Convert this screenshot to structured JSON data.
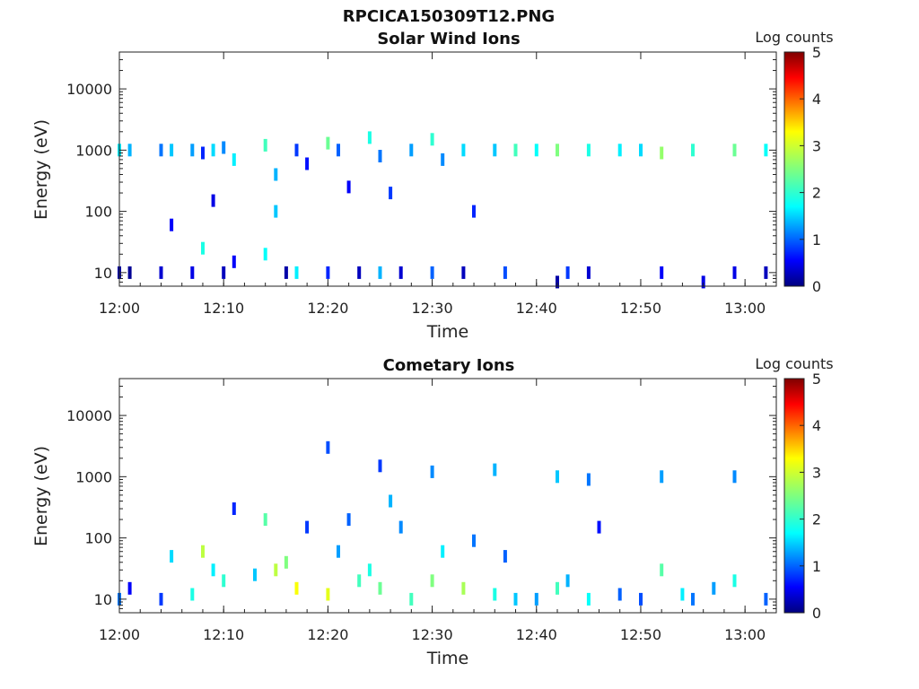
{
  "figure": {
    "title": "RPCICA150309T12.PNG"
  },
  "chart_data": [
    {
      "type": "heatmap",
      "title": "Solar Wind Ions",
      "xlabel": "Time",
      "ylabel": "Energy (eV)",
      "x_range": [
        "12:00",
        "13:03"
      ],
      "xticks": [
        "12:00",
        "12:10",
        "12:20",
        "12:30",
        "12:40",
        "12:50",
        "13:00"
      ],
      "y_scale": "log",
      "y_range": [
        6,
        40000
      ],
      "yticks": [
        "10",
        "100",
        "1000",
        "10000"
      ],
      "colorbar": {
        "title": "Log counts",
        "range": [
          0,
          5
        ],
        "ticks": [
          "0",
          "1",
          "2",
          "3",
          "4",
          "5"
        ],
        "colormap": "jet"
      },
      "cells": [
        {
          "t": "12:00",
          "e": 10,
          "v": 0.2
        },
        {
          "t": "12:00",
          "e": 1000,
          "v": 1.8
        },
        {
          "t": "12:01",
          "e": 1000,
          "v": 1.5
        },
        {
          "t": "12:01",
          "e": 10,
          "v": 0.1
        },
        {
          "t": "12:04",
          "e": 1000,
          "v": 1.2
        },
        {
          "t": "12:04",
          "e": 10,
          "v": 0.4
        },
        {
          "t": "12:05",
          "e": 1000,
          "v": 1.6
        },
        {
          "t": "12:05",
          "e": 60,
          "v": 0.6
        },
        {
          "t": "12:07",
          "e": 1000,
          "v": 1.4
        },
        {
          "t": "12:07",
          "e": 10,
          "v": 0.5
        },
        {
          "t": "12:08",
          "e": 25,
          "v": 2.0
        },
        {
          "t": "12:08",
          "e": 900,
          "v": 0.8
        },
        {
          "t": "12:09",
          "e": 1000,
          "v": 1.7
        },
        {
          "t": "12:09",
          "e": 150,
          "v": 0.5
        },
        {
          "t": "12:10",
          "e": 10,
          "v": 0.3
        },
        {
          "t": "12:10",
          "e": 1100,
          "v": 1.3
        },
        {
          "t": "12:11",
          "e": 700,
          "v": 1.8
        },
        {
          "t": "12:11",
          "e": 15,
          "v": 0.6
        },
        {
          "t": "12:14",
          "e": 20,
          "v": 1.9
        },
        {
          "t": "12:14",
          "e": 1200,
          "v": 2.2
        },
        {
          "t": "12:15",
          "e": 400,
          "v": 1.5
        },
        {
          "t": "12:15",
          "e": 100,
          "v": 1.6
        },
        {
          "t": "12:16",
          "e": 10,
          "v": 0.2
        },
        {
          "t": "12:17",
          "e": 10,
          "v": 1.8
        },
        {
          "t": "12:17",
          "e": 1000,
          "v": 0.9
        },
        {
          "t": "12:18",
          "e": 600,
          "v": 0.7
        },
        {
          "t": "12:20",
          "e": 1300,
          "v": 2.4
        },
        {
          "t": "12:20",
          "e": 10,
          "v": 0.8
        },
        {
          "t": "12:21",
          "e": 1000,
          "v": 1.1
        },
        {
          "t": "12:22",
          "e": 250,
          "v": 0.6
        },
        {
          "t": "12:23",
          "e": 10,
          "v": 0.3
        },
        {
          "t": "12:24",
          "e": 1600,
          "v": 2.0
        },
        {
          "t": "12:25",
          "e": 800,
          "v": 1.2
        },
        {
          "t": "12:25",
          "e": 10,
          "v": 1.5
        },
        {
          "t": "12:26",
          "e": 200,
          "v": 0.9
        },
        {
          "t": "12:27",
          "e": 10,
          "v": 0.4
        },
        {
          "t": "12:28",
          "e": 1000,
          "v": 1.4
        },
        {
          "t": "12:30",
          "e": 1500,
          "v": 2.1
        },
        {
          "t": "12:30",
          "e": 10,
          "v": 1.1
        },
        {
          "t": "12:31",
          "e": 700,
          "v": 1.3
        },
        {
          "t": "12:33",
          "e": 10,
          "v": 0.3
        },
        {
          "t": "12:33",
          "e": 1000,
          "v": 1.7
        },
        {
          "t": "12:34",
          "e": 100,
          "v": 0.8
        },
        {
          "t": "12:36",
          "e": 1000,
          "v": 1.6
        },
        {
          "t": "12:37",
          "e": 10,
          "v": 1.0
        },
        {
          "t": "12:38",
          "e": 1000,
          "v": 2.2
        },
        {
          "t": "12:40",
          "e": 1000,
          "v": 1.9
        },
        {
          "t": "12:42",
          "e": 1000,
          "v": 2.5
        },
        {
          "t": "12:42",
          "e": 7,
          "v": 0.2
        },
        {
          "t": "12:43",
          "e": 10,
          "v": 0.9
        },
        {
          "t": "12:45",
          "e": 1000,
          "v": 2.0
        },
        {
          "t": "12:45",
          "e": 10,
          "v": 0.4
        },
        {
          "t": "12:48",
          "e": 1000,
          "v": 1.8
        },
        {
          "t": "12:50",
          "e": 1000,
          "v": 1.7
        },
        {
          "t": "12:52",
          "e": 900,
          "v": 2.6
        },
        {
          "t": "12:52",
          "e": 10,
          "v": 0.6
        },
        {
          "t": "12:55",
          "e": 1000,
          "v": 2.1
        },
        {
          "t": "12:56",
          "e": 7,
          "v": 0.5
        },
        {
          "t": "12:59",
          "e": 1000,
          "v": 2.4
        },
        {
          "t": "12:59",
          "e": 10,
          "v": 0.5
        },
        {
          "t": "13:02",
          "e": 1000,
          "v": 1.9
        },
        {
          "t": "13:02",
          "e": 10,
          "v": 0.3
        }
      ]
    },
    {
      "type": "heatmap",
      "title": "Cometary Ions",
      "xlabel": "Time",
      "ylabel": "Energy (eV)",
      "x_range": [
        "12:00",
        "13:03"
      ],
      "xticks": [
        "12:00",
        "12:10",
        "12:20",
        "12:30",
        "12:40",
        "12:50",
        "13:00"
      ],
      "y_scale": "log",
      "y_range": [
        6,
        40000
      ],
      "yticks": [
        "10",
        "100",
        "1000",
        "10000"
      ],
      "colorbar": {
        "title": "Log counts",
        "range": [
          0,
          5
        ],
        "ticks": [
          "0",
          "1",
          "2",
          "3",
          "4",
          "5"
        ],
        "colormap": "jet"
      },
      "cells": [
        {
          "t": "12:00",
          "e": 10,
          "v": 1.2
        },
        {
          "t": "12:01",
          "e": 15,
          "v": 0.6
        },
        {
          "t": "12:04",
          "e": 10,
          "v": 0.9
        },
        {
          "t": "12:05",
          "e": 50,
          "v": 1.7
        },
        {
          "t": "12:07",
          "e": 12,
          "v": 2.0
        },
        {
          "t": "12:08",
          "e": 60,
          "v": 2.8
        },
        {
          "t": "12:09",
          "e": 30,
          "v": 1.8
        },
        {
          "t": "12:10",
          "e": 20,
          "v": 2.1
        },
        {
          "t": "12:11",
          "e": 300,
          "v": 0.8
        },
        {
          "t": "12:13",
          "e": 25,
          "v": 1.6
        },
        {
          "t": "12:14",
          "e": 200,
          "v": 2.3
        },
        {
          "t": "12:15",
          "e": 30,
          "v": 2.8
        },
        {
          "t": "12:16",
          "e": 40,
          "v": 2.5
        },
        {
          "t": "12:17",
          "e": 15,
          "v": 3.1
        },
        {
          "t": "12:18",
          "e": 150,
          "v": 0.9
        },
        {
          "t": "12:20",
          "e": 12,
          "v": 3.0
        },
        {
          "t": "12:21",
          "e": 60,
          "v": 1.4
        },
        {
          "t": "12:22",
          "e": 200,
          "v": 1.1
        },
        {
          "t": "12:23",
          "e": 20,
          "v": 2.2
        },
        {
          "t": "12:24",
          "e": 30,
          "v": 2.0
        },
        {
          "t": "12:25",
          "e": 15,
          "v": 2.4
        },
        {
          "t": "12:26",
          "e": 400,
          "v": 1.5
        },
        {
          "t": "12:27",
          "e": 150,
          "v": 1.3
        },
        {
          "t": "12:28",
          "e": 10,
          "v": 2.2
        },
        {
          "t": "12:30",
          "e": 20,
          "v": 2.5
        },
        {
          "t": "12:31",
          "e": 60,
          "v": 1.8
        },
        {
          "t": "12:33",
          "e": 15,
          "v": 2.7
        },
        {
          "t": "12:34",
          "e": 90,
          "v": 1.2
        },
        {
          "t": "12:36",
          "e": 12,
          "v": 2.0
        },
        {
          "t": "12:37",
          "e": 50,
          "v": 1.1
        },
        {
          "t": "12:38",
          "e": 10,
          "v": 1.6
        },
        {
          "t": "12:40",
          "e": 10,
          "v": 1.4
        },
        {
          "t": "12:42",
          "e": 15,
          "v": 2.2
        },
        {
          "t": "12:43",
          "e": 20,
          "v": 1.5
        },
        {
          "t": "12:45",
          "e": 10,
          "v": 1.9
        },
        {
          "t": "12:46",
          "e": 150,
          "v": 0.7
        },
        {
          "t": "12:48",
          "e": 12,
          "v": 1.1
        },
        {
          "t": "12:50",
          "e": 10,
          "v": 1.0
        },
        {
          "t": "12:52",
          "e": 30,
          "v": 2.3
        },
        {
          "t": "12:54",
          "e": 12,
          "v": 1.8
        },
        {
          "t": "12:55",
          "e": 10,
          "v": 1.2
        },
        {
          "t": "12:57",
          "e": 15,
          "v": 1.4
        },
        {
          "t": "12:59",
          "e": 20,
          "v": 2.0
        },
        {
          "t": "13:02",
          "e": 10,
          "v": 1.1
        },
        {
          "t": "12:20",
          "e": 3000,
          "v": 1.0
        },
        {
          "t": "12:25",
          "e": 1500,
          "v": 0.9
        },
        {
          "t": "12:30",
          "e": 1200,
          "v": 1.3
        },
        {
          "t": "12:36",
          "e": 1300,
          "v": 1.5
        },
        {
          "t": "12:42",
          "e": 1000,
          "v": 1.6
        },
        {
          "t": "12:45",
          "e": 900,
          "v": 1.2
        },
        {
          "t": "12:52",
          "e": 1000,
          "v": 1.4
        },
        {
          "t": "12:59",
          "e": 1000,
          "v": 1.3
        }
      ]
    }
  ]
}
